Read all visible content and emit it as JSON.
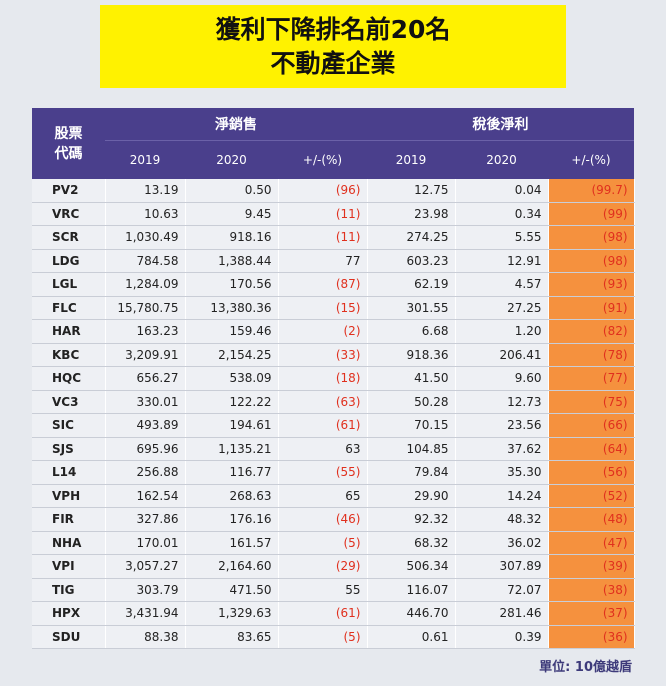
{
  "title": {
    "lines": [
      "獲利下降排名前20名",
      "不動產企業"
    ]
  },
  "table": {
    "header": {
      "code_lines": [
        "股票",
        "代碼"
      ],
      "groups": [
        "淨銷售",
        "稅後淨利"
      ],
      "sub": [
        "2019",
        "2020",
        "+/-(%)",
        "2019",
        "2020",
        "+/-(%)"
      ]
    },
    "rows": [
      [
        "PV2",
        "13.19",
        "0.50",
        "(96)",
        "12.75",
        "0.04",
        "(99.7)"
      ],
      [
        "VRC",
        "10.63",
        "9.45",
        "(11)",
        "23.98",
        "0.34",
        "(99)"
      ],
      [
        "SCR",
        "1,030.49",
        "918.16",
        "(11)",
        "274.25",
        "5.55",
        "(98)"
      ],
      [
        "LDG",
        "784.58",
        "1,388.44",
        "77",
        "603.23",
        "12.91",
        "(98)"
      ],
      [
        "LGL",
        "1,284.09",
        "170.56",
        "(87)",
        "62.19",
        "4.57",
        "(93)"
      ],
      [
        "FLC",
        "15,780.75",
        "13,380.36",
        "(15)",
        "301.55",
        "27.25",
        "(91)"
      ],
      [
        "HAR",
        "163.23",
        "159.46",
        "(2)",
        "6.68",
        "1.20",
        "(82)"
      ],
      [
        "KBC",
        "3,209.91",
        "2,154.25",
        "(33)",
        "918.36",
        "206.41",
        "(78)"
      ],
      [
        "HQC",
        "656.27",
        "538.09",
        "(18)",
        "41.50",
        "9.60",
        "(77)"
      ],
      [
        "VC3",
        "330.01",
        "122.22",
        "(63)",
        "50.28",
        "12.73",
        "(75)"
      ],
      [
        "SIC",
        "493.89",
        "194.61",
        "(61)",
        "70.15",
        "23.56",
        "(66)"
      ],
      [
        "SJS",
        "695.96",
        "1,135.21",
        "63",
        "104.85",
        "37.62",
        "(64)"
      ],
      [
        "L14",
        "256.88",
        "116.77",
        "(55)",
        "79.84",
        "35.30",
        "(56)"
      ],
      [
        "VPH",
        "162.54",
        "268.63",
        "65",
        "29.90",
        "14.24",
        "(52)"
      ],
      [
        "FIR",
        "327.86",
        "176.16",
        "(46)",
        "92.32",
        "48.32",
        "(48)"
      ],
      [
        "NHA",
        "170.01",
        "161.57",
        "(5)",
        "68.32",
        "36.02",
        "(47)"
      ],
      [
        "VPI",
        "3,057.27",
        "2,164.60",
        "(29)",
        "506.34",
        "307.89",
        "(39)"
      ],
      [
        "TIG",
        "303.79",
        "471.50",
        "55",
        "116.07",
        "72.07",
        "(38)"
      ],
      [
        "HPX",
        "3,431.94",
        "1,329.63",
        "(61)",
        "446.70",
        "281.46",
        "(37)"
      ],
      [
        "SDU",
        "88.38",
        "83.65",
        "(5)",
        "0.61",
        "0.39",
        "(36)"
      ]
    ]
  },
  "note": "單位: 10億越盾"
}
